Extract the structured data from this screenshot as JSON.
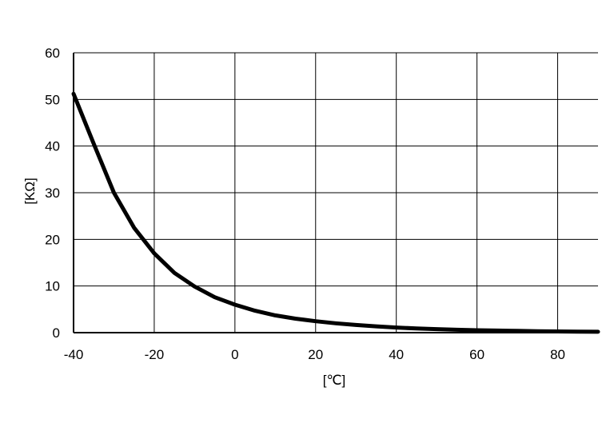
{
  "chart_data": {
    "type": "line",
    "title": "",
    "xlabel": "[℃]",
    "ylabel": "[KΩ]",
    "xlim": [
      -40,
      90
    ],
    "ylim": [
      0,
      60
    ],
    "xticks": [
      -40,
      -20,
      0,
      20,
      40,
      60,
      80
    ],
    "yticks": [
      0,
      10,
      20,
      30,
      40,
      50,
      60
    ],
    "grid": true,
    "legend": "none",
    "line_color": "#000000",
    "series": [
      {
        "x": [
          -40,
          -35,
          -30,
          -25,
          -20,
          -15,
          -10,
          -5,
          0,
          5,
          10,
          15,
          20,
          25,
          30,
          35,
          40,
          45,
          50,
          55,
          60,
          65,
          70,
          75,
          80,
          85,
          90
        ],
        "y": [
          51.2,
          40.5,
          30.0,
          22.5,
          17.0,
          12.8,
          9.9,
          7.6,
          6.0,
          4.7,
          3.7,
          3.0,
          2.45,
          2.0,
          1.65,
          1.35,
          1.1,
          0.9,
          0.75,
          0.62,
          0.52,
          0.44,
          0.37,
          0.31,
          0.26,
          0.22,
          0.18
        ]
      }
    ]
  }
}
